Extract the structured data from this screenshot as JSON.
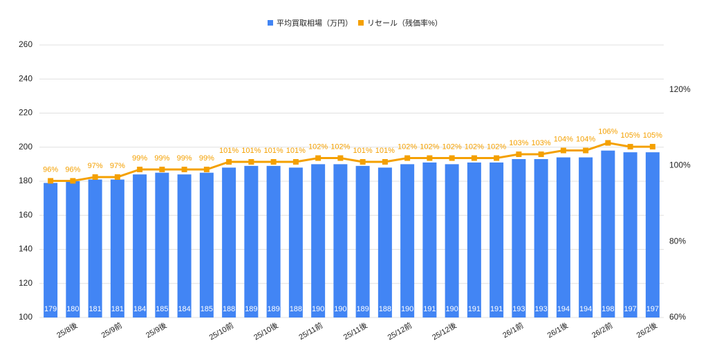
{
  "chart_data": {
    "type": "bar-line",
    "categories": [
      null,
      "25/8後",
      null,
      "25/9前",
      null,
      "25/9後",
      null,
      null,
      "25/10前",
      null,
      "25/10後",
      null,
      "25/11前",
      null,
      "25/11後",
      null,
      "25/12前",
      null,
      "25/12後",
      null,
      null,
      "26/1前",
      null,
      "26/1後",
      null,
      "26/2前",
      null,
      "26/2後"
    ],
    "series": [
      {
        "name": "平均買取相場（万円）",
        "color": "#4285f4",
        "values": [
          179,
          180,
          181,
          181,
          184,
          185,
          184,
          185,
          188,
          189,
          189,
          188,
          190,
          190,
          189,
          188,
          190,
          191,
          190,
          191,
          191,
          193,
          193,
          194,
          194,
          198,
          197,
          197
        ]
      },
      {
        "name": "リセール（残価率%）",
        "color": "#f4a000",
        "axis": "y2",
        "values": [
          96,
          96,
          97,
          97,
          99,
          99,
          99,
          99,
          101,
          101,
          101,
          101,
          102,
          102,
          101,
          101,
          102,
          102,
          102,
          102,
          102,
          103,
          103,
          104,
          104,
          106,
          105,
          105
        ],
        "value_labels": [
          "96%",
          "96%",
          "97%",
          "97%",
          "99%",
          "99%",
          "99%",
          "99%",
          "101%",
          "101%",
          "101%",
          "101%",
          "102%",
          "102%",
          "101%",
          "101%",
          "102%",
          "102%",
          "102%",
          "102%",
          "102%",
          "103%",
          "103%",
          "104%",
          "104%",
          "106%",
          "105%",
          "105%"
        ]
      }
    ],
    "ylim": [
      100,
      260
    ],
    "yticks": [
      100,
      120,
      140,
      160,
      180,
      200,
      220,
      240,
      260
    ],
    "y2lim": [
      60,
      131.8
    ],
    "y2ticks": [
      {
        "value": 60,
        "label": "60%"
      },
      {
        "value": 80,
        "label": "80%"
      },
      {
        "value": 100,
        "label": "100%"
      },
      {
        "value": 120,
        "label": "120%"
      }
    ],
    "grid": true,
    "legend": "top"
  }
}
